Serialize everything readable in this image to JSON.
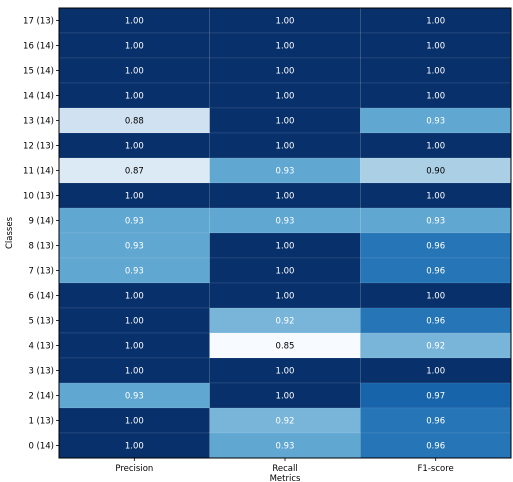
{
  "chart_data": {
    "type": "heatmap",
    "xlabel": "Metrics",
    "ylabel": "Classes",
    "columns": [
      "Precision",
      "Recall",
      "F1-score"
    ],
    "rows": [
      {
        "label": "17 (13)",
        "values": [
          1.0,
          1.0,
          1.0
        ]
      },
      {
        "label": "16 (14)",
        "values": [
          1.0,
          1.0,
          1.0
        ]
      },
      {
        "label": "15 (14)",
        "values": [
          1.0,
          1.0,
          1.0
        ]
      },
      {
        "label": "14 (14)",
        "values": [
          1.0,
          1.0,
          1.0
        ]
      },
      {
        "label": "13 (14)",
        "values": [
          0.88,
          1.0,
          0.93
        ]
      },
      {
        "label": "12 (13)",
        "values": [
          1.0,
          1.0,
          1.0
        ]
      },
      {
        "label": "11 (14)",
        "values": [
          0.87,
          0.93,
          0.9
        ]
      },
      {
        "label": "10 (13)",
        "values": [
          1.0,
          1.0,
          1.0
        ]
      },
      {
        "label": "9 (14)",
        "values": [
          0.93,
          0.93,
          0.93
        ]
      },
      {
        "label": "8 (13)",
        "values": [
          0.93,
          1.0,
          0.96
        ]
      },
      {
        "label": "7 (13)",
        "values": [
          0.93,
          1.0,
          0.96
        ]
      },
      {
        "label": "6 (14)",
        "values": [
          1.0,
          1.0,
          1.0
        ]
      },
      {
        "label": "5 (13)",
        "values": [
          1.0,
          0.92,
          0.96
        ]
      },
      {
        "label": "4 (13)",
        "values": [
          1.0,
          0.85,
          0.92
        ]
      },
      {
        "label": "3 (13)",
        "values": [
          1.0,
          1.0,
          1.0
        ]
      },
      {
        "label": "2 (14)",
        "values": [
          0.93,
          1.0,
          0.97
        ]
      },
      {
        "label": "1 (13)",
        "values": [
          1.0,
          0.92,
          0.96
        ]
      },
      {
        "label": "0 (14)",
        "values": [
          1.0,
          0.93,
          0.96
        ]
      }
    ],
    "colormap": "Blues",
    "value_range": [
      0.85,
      1.0
    ],
    "value_format": "2 decimals",
    "grid": false,
    "legend": "none"
  }
}
